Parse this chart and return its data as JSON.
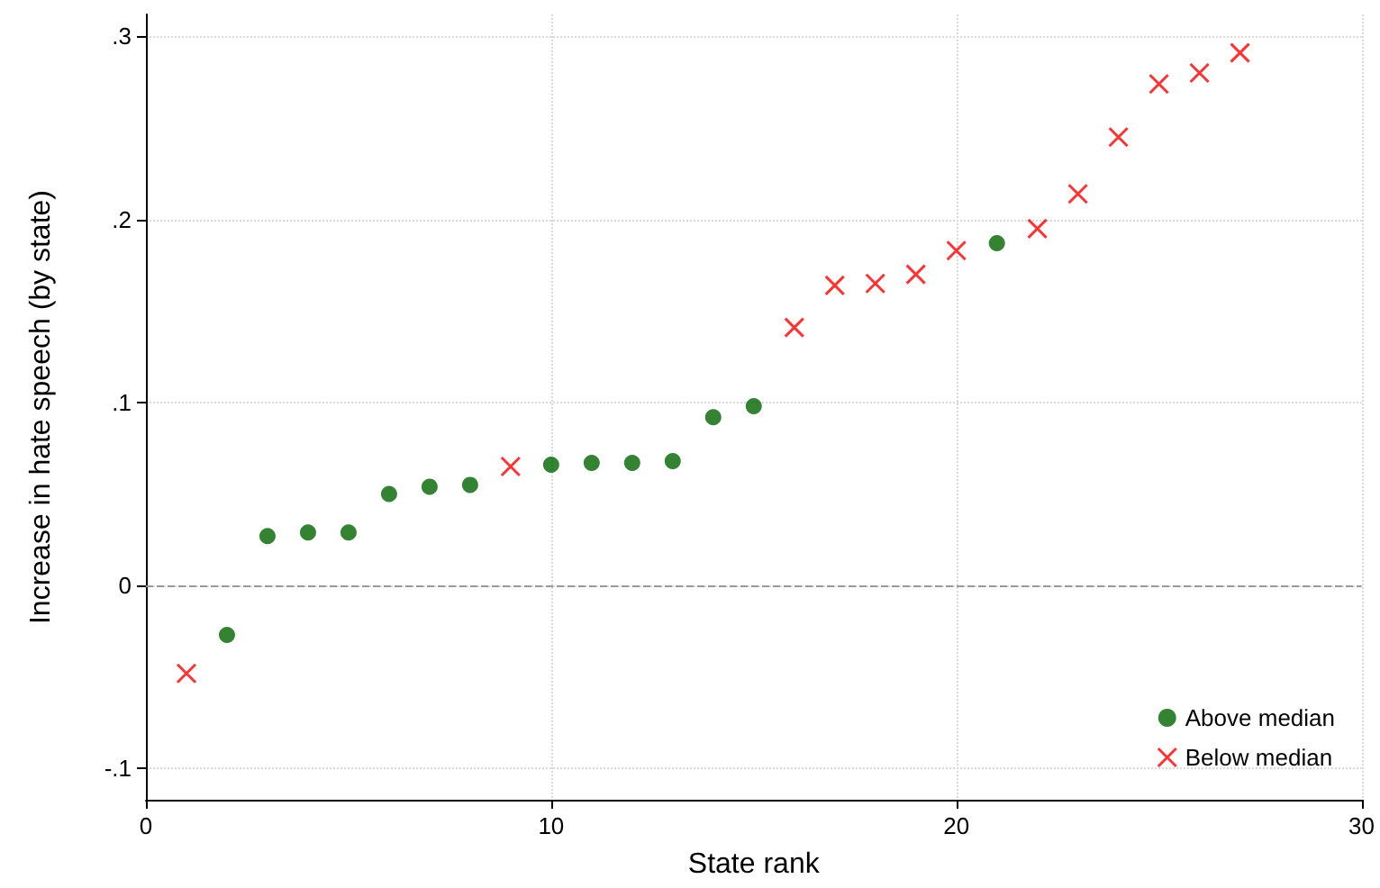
{
  "chart_data": {
    "type": "scatter",
    "xlabel": "State rank",
    "ylabel": "Increase in hate speech (by state)",
    "series": [
      {
        "name": "Above median",
        "color": "#006400",
        "marker": "circle",
        "x": [
          2,
          3,
          4,
          5,
          6,
          7,
          8,
          10,
          11,
          12,
          13,
          14,
          15,
          21
        ],
        "values": [
          -0.027,
          0.027,
          0.029,
          0.029,
          0.05,
          0.054,
          0.055,
          0.066,
          0.067,
          0.067,
          0.068,
          0.092,
          0.098,
          0.187
        ]
      },
      {
        "name": "Below median",
        "color": "#ff0000",
        "marker": "cross",
        "x": [
          1,
          9,
          16,
          17,
          18,
          19,
          20,
          22,
          23,
          24,
          25,
          26,
          27
        ],
        "values": [
          -0.048,
          0.065,
          0.141,
          0.164,
          0.165,
          0.17,
          0.183,
          0.195,
          0.214,
          0.245,
          0.274,
          0.28,
          0.291
        ]
      }
    ],
    "xlim": [
      0,
      30
    ],
    "xticks": [
      0,
      10,
      20,
      30
    ],
    "ylim": [
      -0.117,
      0.312
    ],
    "yticks": [
      {
        "value": -0.1,
        "label": "-.1"
      },
      {
        "value": 0,
        "label": "0"
      },
      {
        "value": 0.1,
        "label": ".1"
      },
      {
        "value": 0.2,
        "label": ".2"
      },
      {
        "value": 0.3,
        "label": ".3"
      }
    ],
    "ref_lines": [
      {
        "axis": "y",
        "value": 0,
        "label": null,
        "color": "#999999",
        "line_style": "dashed"
      }
    ],
    "grid": true,
    "legend": "bottom right"
  }
}
